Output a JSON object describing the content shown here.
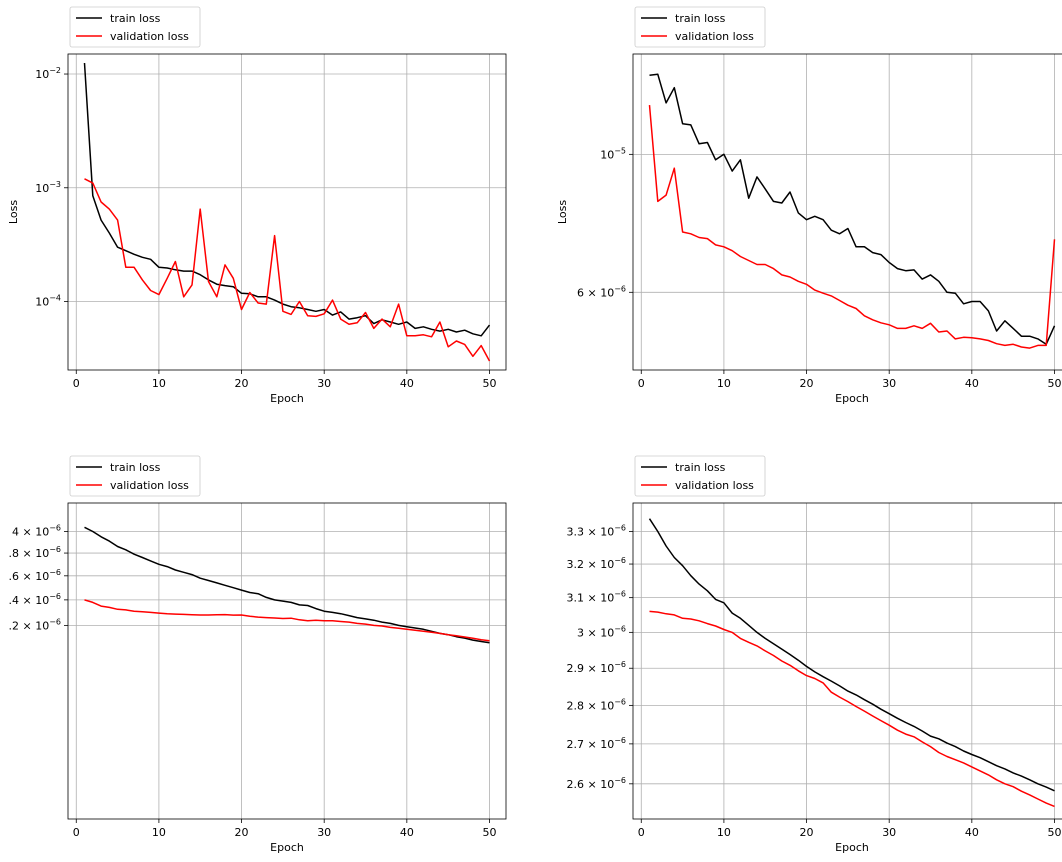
{
  "chart_data": [
    {
      "type": "line",
      "title": "",
      "xlabel": "Epoch",
      "ylabel": "Loss",
      "yscale": "log",
      "xlim": [
        -1,
        52
      ],
      "ylim": [
        2.5e-05,
        0.015
      ],
      "grid": true,
      "legend_position": "top-left (above plot)",
      "x_ticks": [
        0,
        10,
        20,
        30,
        40,
        50
      ],
      "y_ticks": [
        {
          "value": 0.01,
          "label": "10",
          "exp": "−2"
        },
        {
          "value": 0.001,
          "label": "10",
          "exp": "−3"
        },
        {
          "value": 0.0001,
          "label": "10",
          "exp": "−4"
        }
      ],
      "x": [
        1,
        2,
        3,
        4,
        5,
        6,
        7,
        8,
        9,
        10,
        11,
        12,
        13,
        14,
        15,
        16,
        17,
        18,
        19,
        20,
        21,
        22,
        23,
        24,
        25,
        26,
        27,
        28,
        29,
        30,
        31,
        32,
        33,
        34,
        35,
        36,
        37,
        38,
        39,
        40,
        41,
        42,
        43,
        44,
        45,
        46,
        47,
        48,
        49,
        50
      ],
      "series": [
        {
          "name": "train loss",
          "color": "#000000",
          "values": [
            0.0125,
            0.00085,
            0.00052,
            0.0004,
            0.0003,
            0.00028,
            0.00026,
            0.000245,
            0.000235,
            0.0002,
            0.000197,
            0.00019,
            0.000185,
            0.000185,
            0.000172,
            0.000155,
            0.000142,
            0.000138,
            0.000135,
            0.000118,
            0.000117,
            0.00011,
            0.00011,
            0.000103,
            9.5e-05,
            9e-05,
            8.8e-05,
            8.5e-05,
            8.2e-05,
            8.5e-05,
            7.6e-05,
            8.1e-05,
            7e-05,
            7.2e-05,
            7.5e-05,
            6.4e-05,
            6.9e-05,
            6.6e-05,
            6.3e-05,
            6.6e-05,
            5.8e-05,
            6e-05,
            5.7e-05,
            5.5e-05,
            5.7e-05,
            5.4e-05,
            5.6e-05,
            5.2e-05,
            5e-05,
            6.2e-05
          ]
        },
        {
          "name": "validation loss",
          "color": "#ff0000",
          "values": [
            0.0012,
            0.0011,
            0.00075,
            0.00065,
            0.00052,
            0.0002,
            0.0002,
            0.000155,
            0.000125,
            0.000115,
            0.00016,
            0.000225,
            0.00011,
            0.00014,
            0.00065,
            0.00015,
            0.00011,
            0.00021,
            0.00016,
            8.5e-05,
            0.00012,
            9.7e-05,
            9.5e-05,
            0.00038,
            8.2e-05,
            7.7e-05,
            0.0001,
            7.5e-05,
            7.4e-05,
            7.8e-05,
            0.000103,
            7e-05,
            6.3e-05,
            6.5e-05,
            8e-05,
            5.8e-05,
            7e-05,
            6e-05,
            9.5e-05,
            5e-05,
            5e-05,
            5.1e-05,
            4.9e-05,
            6.6e-05,
            4e-05,
            4.5e-05,
            4.2e-05,
            3.3e-05,
            4.1e-05,
            3e-05
          ]
        }
      ]
    },
    {
      "type": "line",
      "title": "",
      "xlabel": "Epoch",
      "ylabel": "Loss",
      "yscale": "log",
      "xlim": [
        -1,
        52
      ],
      "ylim": [
        4.5e-06,
        1.45e-05
      ],
      "grid": true,
      "legend_position": "top-left (above plot)",
      "x_ticks": [
        0,
        10,
        20,
        30,
        40,
        50
      ],
      "y_ticks": [
        {
          "value": 1e-05,
          "label": "10",
          "exp": "−5"
        },
        {
          "value": 6e-06,
          "label": "6 × 10",
          "exp": "−6"
        }
      ],
      "x": [
        1,
        2,
        3,
        4,
        5,
        6,
        7,
        8,
        9,
        10,
        11,
        12,
        13,
        14,
        15,
        16,
        17,
        18,
        19,
        20,
        21,
        22,
        23,
        24,
        25,
        26,
        27,
        28,
        29,
        30,
        31,
        32,
        33,
        34,
        35,
        36,
        37,
        38,
        39,
        40,
        41,
        42,
        43,
        44,
        45,
        46,
        47,
        48,
        49,
        50
      ],
      "series": [
        {
          "name": "train loss",
          "color": "#000000",
          "values": [
            1.34e-05,
            1.345e-05,
            1.21e-05,
            1.28e-05,
            1.12e-05,
            1.115e-05,
            1.04e-05,
            1.045e-05,
            9.8e-06,
            1e-05,
            9.4e-06,
            9.8e-06,
            8.5e-06,
            9.2e-06,
            8.8e-06,
            8.4e-06,
            8.35e-06,
            8.7e-06,
            8.05e-06,
            7.85e-06,
            7.95e-06,
            7.85e-06,
            7.55e-06,
            7.45e-06,
            7.6e-06,
            7.1e-06,
            7.1e-06,
            6.95e-06,
            6.9e-06,
            6.7e-06,
            6.55e-06,
            6.5e-06,
            6.52e-06,
            6.3e-06,
            6.4e-06,
            6.25e-06,
            6e-06,
            5.98e-06,
            5.75e-06,
            5.8e-06,
            5.8e-06,
            5.6e-06,
            5.2e-06,
            5.4e-06,
            5.25e-06,
            5.1e-06,
            5.1e-06,
            5.05e-06,
            4.95e-06,
            5.3e-06
          ]
        },
        {
          "name": "validation loss",
          "color": "#ff0000",
          "values": [
            1.2e-05,
            8.4e-06,
            8.6e-06,
            9.5e-06,
            7.5e-06,
            7.45e-06,
            7.35e-06,
            7.32e-06,
            7.15e-06,
            7.1e-06,
            7e-06,
            6.85e-06,
            6.75e-06,
            6.65e-06,
            6.65e-06,
            6.55e-06,
            6.4e-06,
            6.35e-06,
            6.25e-06,
            6.18e-06,
            6.05e-06,
            5.98e-06,
            5.92e-06,
            5.82e-06,
            5.72e-06,
            5.65e-06,
            5.5e-06,
            5.42e-06,
            5.36e-06,
            5.32e-06,
            5.25e-06,
            5.25e-06,
            5.3e-06,
            5.25e-06,
            5.35e-06,
            5.18e-06,
            5.2e-06,
            5.05e-06,
            5.08e-06,
            5.07e-06,
            5.05e-06,
            5.02e-06,
            4.96e-06,
            4.93e-06,
            4.95e-06,
            4.9e-06,
            4.88e-06,
            4.93e-06,
            4.93e-06,
            7.3e-06
          ]
        }
      ]
    },
    {
      "type": "line",
      "title": "",
      "xlabel": "Epoch",
      "ylabel": "",
      "yscale": "log",
      "xlim": [
        -1,
        52
      ],
      "ylim": [
        2.02e-06,
        4.28e-06
      ],
      "grid": true,
      "legend_position": "top-left (above plot)",
      "x_ticks": [
        0,
        10,
        20,
        30,
        40,
        50
      ],
      "y_ticks": [
        {
          "value": 4e-06,
          "label": "4 × 10",
          "exp": "−6"
        },
        {
          "value": 3.8e-06,
          "label": ".8 × 10",
          "exp": "−6"
        },
        {
          "value": 3.6e-06,
          "label": ".6 × 10",
          "exp": "−6"
        },
        {
          "value": 3.4e-06,
          "label": ".4 × 10",
          "exp": "−6"
        },
        {
          "value": 3.2e-06,
          "label": ".2 × 10",
          "exp": "−6"
        }
      ],
      "x": [
        1,
        2,
        3,
        4,
        5,
        6,
        7,
        8,
        9,
        10,
        11,
        12,
        13,
        14,
        15,
        16,
        17,
        18,
        19,
        20,
        21,
        22,
        23,
        24,
        25,
        26,
        27,
        28,
        29,
        30,
        31,
        32,
        33,
        34,
        35,
        36,
        37,
        38,
        39,
        40,
        41,
        42,
        43,
        44,
        45,
        46,
        47,
        48,
        49,
        50
      ],
      "series": [
        {
          "name": "train loss",
          "color": "#000000",
          "values": [
            4.04e-06,
            4e-06,
            3.95e-06,
            3.91e-06,
            3.86e-06,
            3.83e-06,
            3.79e-06,
            3.76e-06,
            3.73e-06,
            3.7e-06,
            3.68e-06,
            3.65e-06,
            3.63e-06,
            3.61e-06,
            3.58e-06,
            3.56e-06,
            3.54e-06,
            3.52e-06,
            3.5e-06,
            3.48e-06,
            3.46e-06,
            3.45e-06,
            3.42e-06,
            3.4e-06,
            3.39e-06,
            3.38e-06,
            3.36e-06,
            3.355e-06,
            3.33e-06,
            3.31e-06,
            3.3e-06,
            3.29e-06,
            3.275e-06,
            3.26e-06,
            3.25e-06,
            3.24e-06,
            3.225e-06,
            3.215e-06,
            3.2e-06,
            3.19e-06,
            3.18e-06,
            3.17e-06,
            3.155e-06,
            3.14e-06,
            3.13e-06,
            3.115e-06,
            3.105e-06,
            3.09e-06,
            3.08e-06,
            3.07e-06
          ]
        },
        {
          "name": "validation loss",
          "color": "#ff0000",
          "values": [
            3.4e-06,
            3.38e-06,
            3.35e-06,
            3.34e-06,
            3.325e-06,
            3.32e-06,
            3.31e-06,
            3.305e-06,
            3.3e-06,
            3.295e-06,
            3.29e-06,
            3.287e-06,
            3.285e-06,
            3.282e-06,
            3.28e-06,
            3.28e-06,
            3.282e-06,
            3.283e-06,
            3.279e-06,
            3.28e-06,
            3.27e-06,
            3.264e-06,
            3.26e-06,
            3.257e-06,
            3.253e-06,
            3.255e-06,
            3.243e-06,
            3.235e-06,
            3.24e-06,
            3.235e-06,
            3.235e-06,
            3.23e-06,
            3.225e-06,
            3.215e-06,
            3.21e-06,
            3.2e-06,
            3.195e-06,
            3.185e-06,
            3.178e-06,
            3.17e-06,
            3.163e-06,
            3.155e-06,
            3.148e-06,
            3.14e-06,
            3.13e-06,
            3.122e-06,
            3.113e-06,
            3.103e-06,
            3.093e-06,
            3.085e-06
          ]
        }
      ]
    },
    {
      "type": "line",
      "title": "",
      "xlabel": "Epoch",
      "ylabel": "",
      "yscale": "log",
      "xlim": [
        -1,
        52
      ],
      "ylim": [
        2.515e-06,
        3.39e-06
      ],
      "grid": true,
      "legend_position": "top-left (above plot)",
      "x_ticks": [
        0,
        10,
        20,
        30,
        40,
        50
      ],
      "y_ticks": [
        {
          "value": 3.3e-06,
          "label": "3.3 × 10",
          "exp": "−6"
        },
        {
          "value": 3.2e-06,
          "label": "3.2 × 10",
          "exp": "−6"
        },
        {
          "value": 3.1e-06,
          "label": "3.1 × 10",
          "exp": "−6"
        },
        {
          "value": 3e-06,
          "label": "3 × 10",
          "exp": "−6"
        },
        {
          "value": 2.9e-06,
          "label": "2.9 × 10",
          "exp": "−6"
        },
        {
          "value": 2.8e-06,
          "label": "2.8 × 10",
          "exp": "−6"
        },
        {
          "value": 2.7e-06,
          "label": "2.7 × 10",
          "exp": "−6"
        },
        {
          "value": 2.6e-06,
          "label": "2.6 × 10",
          "exp": "−6"
        }
      ],
      "x": [
        1,
        2,
        3,
        4,
        5,
        6,
        7,
        8,
        9,
        10,
        11,
        12,
        13,
        14,
        15,
        16,
        17,
        18,
        19,
        20,
        21,
        22,
        23,
        24,
        25,
        26,
        27,
        28,
        29,
        30,
        31,
        32,
        33,
        34,
        35,
        36,
        37,
        38,
        39,
        40,
        41,
        42,
        43,
        44,
        45,
        46,
        47,
        48,
        49,
        50
      ],
      "series": [
        {
          "name": "train loss",
          "color": "#000000",
          "values": [
            3.34e-06,
            3.3e-06,
            3.255e-06,
            3.22e-06,
            3.195e-06,
            3.165e-06,
            3.14e-06,
            3.12e-06,
            3.095e-06,
            3.085e-06,
            3.055e-06,
            3.04e-06,
            3.02e-06,
            3e-06,
            2.983e-06,
            2.968e-06,
            2.953e-06,
            2.938e-06,
            2.922e-06,
            2.905e-06,
            2.89e-06,
            2.877e-06,
            2.865e-06,
            2.852e-06,
            2.838e-06,
            2.828e-06,
            2.815e-06,
            2.803e-06,
            2.79e-06,
            2.778e-06,
            2.766e-06,
            2.755e-06,
            2.745e-06,
            2.733e-06,
            2.72e-06,
            2.713e-06,
            2.702e-06,
            2.693e-06,
            2.682e-06,
            2.673e-06,
            2.665e-06,
            2.655e-06,
            2.645e-06,
            2.637e-06,
            2.627e-06,
            2.619e-06,
            2.61e-06,
            2.6e-06,
            2.592e-06,
            2.583e-06
          ]
        },
        {
          "name": "validation loss",
          "color": "#ff0000",
          "values": [
            3.06e-06,
            3.058e-06,
            3.053e-06,
            3.05e-06,
            3.04e-06,
            3.038e-06,
            3.033e-06,
            3.025e-06,
            3.018e-06,
            3.008e-06,
            3e-06,
            2.983e-06,
            2.972e-06,
            2.962e-06,
            2.948e-06,
            2.935e-06,
            2.92e-06,
            2.908e-06,
            2.893e-06,
            2.88e-06,
            2.872e-06,
            2.86e-06,
            2.835e-06,
            2.822e-06,
            2.81e-06,
            2.797e-06,
            2.785e-06,
            2.772e-06,
            2.76e-06,
            2.748e-06,
            2.735e-06,
            2.725e-06,
            2.718e-06,
            2.705e-06,
            2.693e-06,
            2.678e-06,
            2.668e-06,
            2.66e-06,
            2.652e-06,
            2.642e-06,
            2.632e-06,
            2.622e-06,
            2.61e-06,
            2.6e-06,
            2.593e-06,
            2.582e-06,
            2.573e-06,
            2.563e-06,
            2.553e-06,
            2.545e-06
          ]
        }
      ]
    }
  ]
}
